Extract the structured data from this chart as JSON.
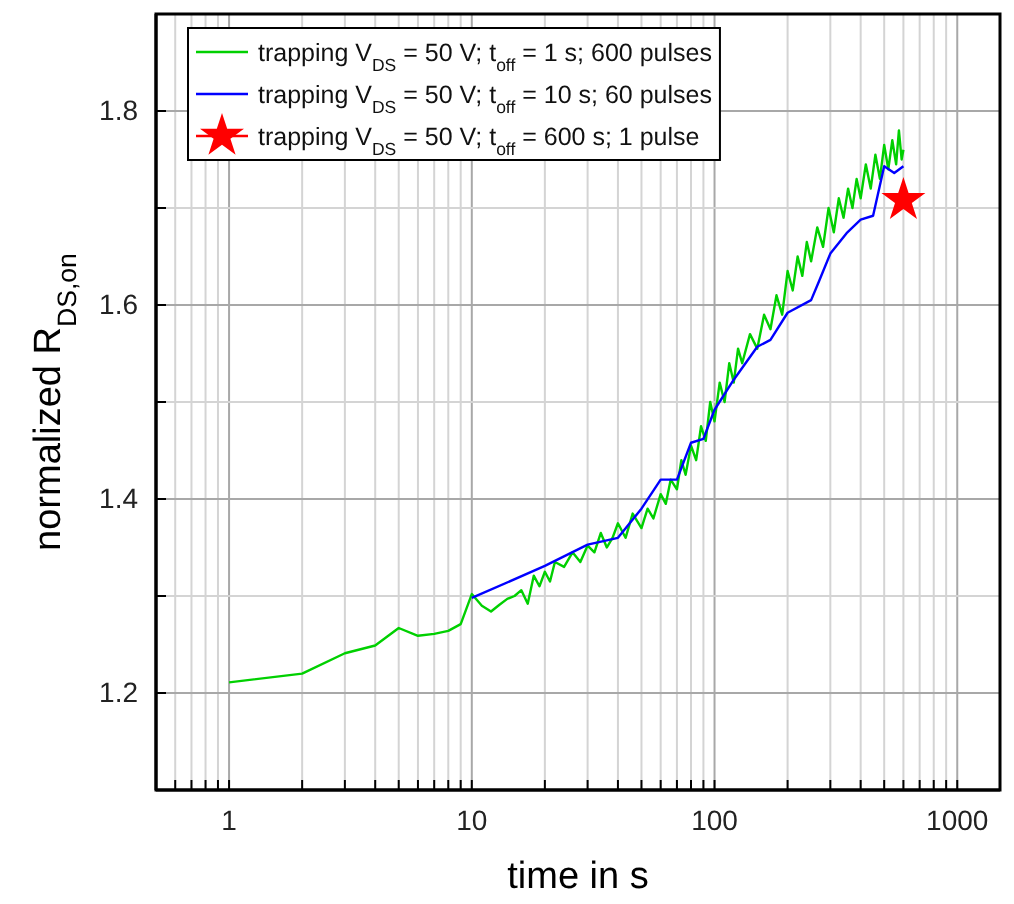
{
  "chart_data": {
    "type": "line",
    "xlabel": "time in s",
    "ylabel": "normalized R$_{DS,on}$",
    "log": "x",
    "xlim": [
      0.5,
      1500
    ],
    "ylim": [
      1.1,
      1.9
    ],
    "xticks": [
      {
        "value": 0.5,
        "label": null
      },
      {
        "value": 0.6,
        "label": null
      },
      {
        "value": 0.7,
        "label": null
      },
      {
        "value": 0.8,
        "label": null
      },
      {
        "value": 0.9,
        "label": null
      },
      1,
      {
        "value": 2,
        "label": null
      },
      {
        "value": 3,
        "label": null
      },
      {
        "value": 4,
        "label": null
      },
      {
        "value": 5,
        "label": null
      },
      {
        "value": 6,
        "label": null
      },
      {
        "value": 7,
        "label": null
      },
      {
        "value": 8,
        "label": null
      },
      {
        "value": 9,
        "label": null
      },
      10,
      {
        "value": 20,
        "label": null
      },
      {
        "value": 30,
        "label": null
      },
      {
        "value": 40,
        "label": null
      },
      {
        "value": 50,
        "label": null
      },
      {
        "value": 60,
        "label": null
      },
      {
        "value": 70,
        "label": null
      },
      {
        "value": 80,
        "label": null
      },
      {
        "value": 90,
        "label": null
      },
      100,
      {
        "value": 200,
        "label": null
      },
      {
        "value": 300,
        "label": null
      },
      {
        "value": 400,
        "label": null
      },
      {
        "value": 500,
        "label": null
      },
      {
        "value": 600,
        "label": null
      },
      {
        "value": 700,
        "label": null
      },
      {
        "value": 800,
        "label": null
      },
      {
        "value": 900,
        "label": null
      },
      1000
    ],
    "yticks": [
      {
        "value": 1.1,
        "label": null
      },
      1.2,
      {
        "value": 1.3,
        "label": null
      },
      1.4,
      {
        "value": 1.5,
        "label": null
      },
      1.6,
      {
        "value": 1.7,
        "label": null
      },
      1.8,
      {
        "value": 1.9,
        "label": null
      }
    ],
    "grid": true,
    "legend": "top left",
    "line_style": "solid",
    "series": [
      {
        "name": "trapping V$_{DS}$ = 50 V; t$_{off}$ = 1 s; 600 pulses",
        "color": "#00d000",
        "x": [
          1,
          2,
          3,
          4,
          5,
          6,
          7,
          8,
          9,
          10,
          11,
          12,
          13,
          14,
          15,
          16,
          17,
          18,
          19,
          20,
          21,
          22,
          24,
          26,
          28,
          30,
          32,
          34,
          36,
          38,
          40,
          43,
          46,
          50,
          53,
          56,
          60,
          63,
          66,
          70,
          73,
          76,
          80,
          84,
          88,
          92,
          96,
          100,
          105,
          110,
          115,
          120,
          125,
          130,
          140,
          150,
          160,
          170,
          180,
          190,
          200,
          210,
          220,
          230,
          240,
          250,
          265,
          280,
          295,
          310,
          325,
          340,
          355,
          370,
          385,
          400,
          420,
          440,
          460,
          480,
          500,
          520,
          540,
          560,
          575,
          590,
          600
        ],
        "values": [
          1.211,
          1.22,
          1.241,
          1.249,
          1.267,
          1.259,
          1.261,
          1.264,
          1.271,
          1.302,
          1.29,
          1.284,
          1.291,
          1.297,
          1.3,
          1.306,
          1.292,
          1.321,
          1.31,
          1.325,
          1.315,
          1.335,
          1.33,
          1.345,
          1.335,
          1.352,
          1.345,
          1.365,
          1.35,
          1.36,
          1.375,
          1.36,
          1.385,
          1.37,
          1.39,
          1.38,
          1.405,
          1.395,
          1.42,
          1.41,
          1.44,
          1.425,
          1.455,
          1.44,
          1.475,
          1.46,
          1.5,
          1.48,
          1.52,
          1.5,
          1.54,
          1.52,
          1.555,
          1.54,
          1.57,
          1.555,
          1.59,
          1.575,
          1.61,
          1.59,
          1.635,
          1.615,
          1.65,
          1.63,
          1.665,
          1.645,
          1.68,
          1.66,
          1.7,
          1.675,
          1.71,
          1.69,
          1.72,
          1.7,
          1.73,
          1.71,
          1.745,
          1.72,
          1.755,
          1.73,
          1.765,
          1.74,
          1.77,
          1.745,
          1.78,
          1.75,
          1.76
        ]
      },
      {
        "name": "trapping V$_{DS}$ = 50 V; t$_{off}$ = 10 s; 60 pulses",
        "color": "#0000ff",
        "x": [
          10,
          20,
          30,
          40,
          50,
          60,
          70,
          80,
          90,
          100,
          120,
          150,
          170,
          200,
          250,
          270,
          300,
          350,
          400,
          450,
          500,
          550,
          600
        ],
        "values": [
          1.298,
          1.331,
          1.353,
          1.36,
          1.39,
          1.42,
          1.42,
          1.458,
          1.462,
          1.492,
          1.523,
          1.557,
          1.564,
          1.592,
          1.605,
          1.625,
          1.653,
          1.674,
          1.688,
          1.692,
          1.743,
          1.736,
          1.743
        ]
      },
      {
        "name": "trapping V$_{DS}$ = 50 V; t$_{off}$ = 600 s; 1 pulse",
        "type": "scatter",
        "marker": "star",
        "color": "#ff0000",
        "x": [
          600
        ],
        "values": [
          1.708
        ]
      }
    ]
  }
}
